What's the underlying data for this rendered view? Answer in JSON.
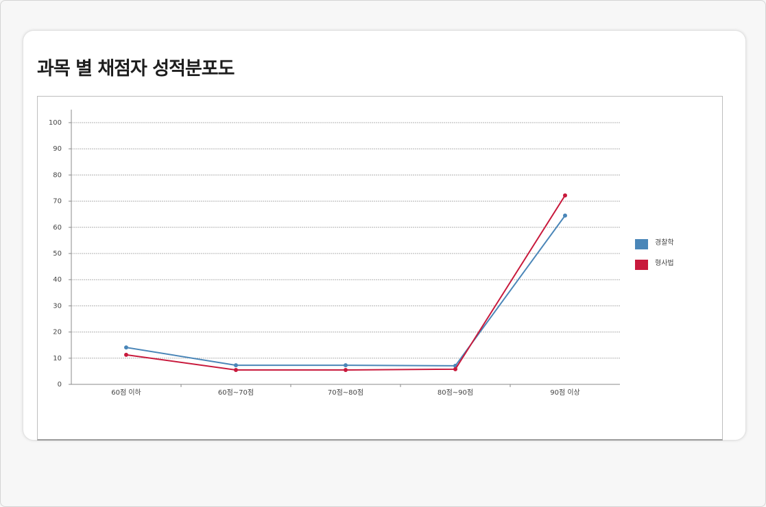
{
  "chart_data": {
    "type": "line",
    "title": "과목 별 채점자 성적분포도",
    "categories": [
      "60점 이하",
      "60점~70점",
      "70점~80점",
      "80점~90점",
      "90점 이상"
    ],
    "series": [
      {
        "name": "경찰학",
        "color": "#4a86b8",
        "values": [
          14.1,
          7.3,
          7.3,
          7.1,
          64.5
        ]
      },
      {
        "name": "형사법",
        "color": "#c8193c",
        "values": [
          11.3,
          5.5,
          5.5,
          5.8,
          72.2
        ]
      }
    ],
    "ylim": [
      0,
      100
    ],
    "yticks": [
      0,
      10,
      20,
      30,
      40,
      50,
      60,
      70,
      80,
      90,
      100
    ],
    "grid": true,
    "legend": "right"
  }
}
